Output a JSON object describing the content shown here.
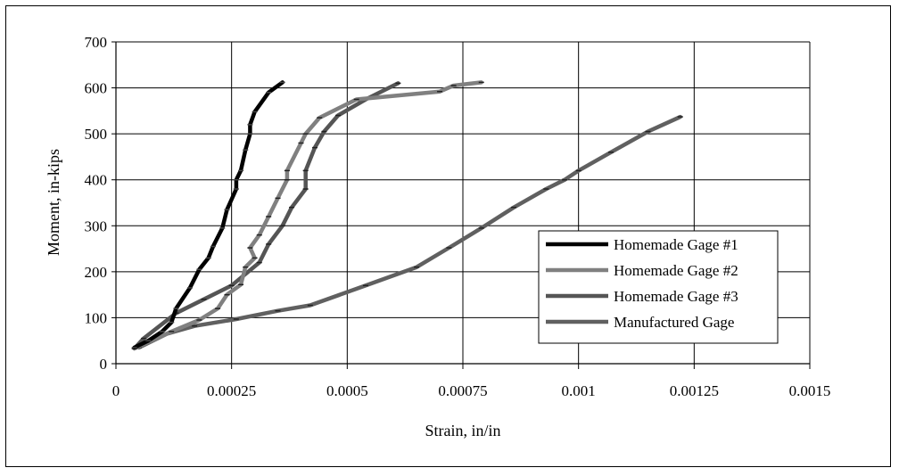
{
  "chart_data": {
    "type": "line",
    "title": "",
    "xlabel": "Strain, in/in",
    "ylabel": "Moment, in-kips",
    "xlim": [
      0,
      0.0015
    ],
    "ylim": [
      0,
      700
    ],
    "x_ticks": [
      0,
      0.00025,
      0.0005,
      0.00075,
      0.001,
      0.00125,
      0.0015
    ],
    "x_tick_labels": [
      "0",
      "0.00025",
      "0.0005",
      "0.00075",
      "0.001",
      "0.00125",
      "0.0015"
    ],
    "y_ticks": [
      0,
      100,
      200,
      300,
      400,
      500,
      600,
      700
    ],
    "y_tick_labels": [
      "0",
      "100",
      "200",
      "300",
      "400",
      "500",
      "600",
      "700"
    ],
    "grid": true,
    "legend_position": "lower-right",
    "series": [
      {
        "name": "Homemade Gage #1",
        "color": "#000000",
        "points": [
          [
            4e-05,
            35
          ],
          [
            7e-05,
            50
          ],
          [
            0.0001,
            70
          ],
          [
            0.00012,
            90
          ],
          [
            0.00013,
            120
          ],
          [
            0.00016,
            165
          ],
          [
            0.00018,
            205
          ],
          [
            0.0002,
            230
          ],
          [
            0.00021,
            255
          ],
          [
            0.00023,
            295
          ],
          [
            0.00024,
            335
          ],
          [
            0.00026,
            380
          ],
          [
            0.00026,
            400
          ],
          [
            0.00027,
            420
          ],
          [
            0.00028,
            465
          ],
          [
            0.00029,
            500
          ],
          [
            0.00029,
            520
          ],
          [
            0.0003,
            548
          ],
          [
            0.00033,
            590
          ],
          [
            0.00036,
            612
          ]
        ]
      },
      {
        "name": "Homemade Gage #2",
        "color": "#808080",
        "points": [
          [
            4e-05,
            33
          ],
          [
            0.00012,
            70
          ],
          [
            0.00018,
            95
          ],
          [
            0.00022,
            120
          ],
          [
            0.00024,
            150
          ],
          [
            0.00027,
            172
          ],
          [
            0.00028,
            210
          ],
          [
            0.0003,
            230
          ],
          [
            0.00029,
            252
          ],
          [
            0.00031,
            280
          ],
          [
            0.00033,
            320
          ],
          [
            0.00035,
            360
          ],
          [
            0.00037,
            400
          ],
          [
            0.00037,
            420
          ],
          [
            0.0004,
            480
          ],
          [
            0.00041,
            500
          ],
          [
            0.00044,
            535
          ],
          [
            0.00052,
            575
          ],
          [
            0.0007,
            592
          ],
          [
            0.00073,
            605
          ],
          [
            0.00079,
            612
          ]
        ]
      },
      {
        "name": "Homemade Gage #3",
        "color": "#555555",
        "points": [
          [
            4e-05,
            33
          ],
          [
            6e-05,
            55
          ],
          [
            0.00013,
            110
          ],
          [
            0.00019,
            140
          ],
          [
            0.00025,
            170
          ],
          [
            0.00031,
            220
          ],
          [
            0.00033,
            260
          ],
          [
            0.00036,
            300
          ],
          [
            0.00038,
            340
          ],
          [
            0.00041,
            380
          ],
          [
            0.00041,
            420
          ],
          [
            0.00043,
            470
          ],
          [
            0.00045,
            505
          ],
          [
            0.00048,
            540
          ],
          [
            0.00054,
            575
          ],
          [
            0.00061,
            610
          ]
        ]
      },
      {
        "name": "Manufactured Gage",
        "color": "#606060",
        "points": [
          [
            5e-05,
            35
          ],
          [
            0.00011,
            65
          ],
          [
            0.00017,
            82
          ],
          [
            0.00026,
            97
          ],
          [
            0.00035,
            115
          ],
          [
            0.00042,
            127
          ],
          [
            0.00054,
            170
          ],
          [
            0.00065,
            210
          ],
          [
            0.00072,
            252
          ],
          [
            0.00079,
            295
          ],
          [
            0.00086,
            340
          ],
          [
            0.00093,
            380
          ],
          [
            0.00097,
            400
          ],
          [
            0.001,
            420
          ],
          [
            0.00107,
            460
          ],
          [
            0.00115,
            505
          ],
          [
            0.00122,
            537
          ]
        ]
      }
    ]
  }
}
